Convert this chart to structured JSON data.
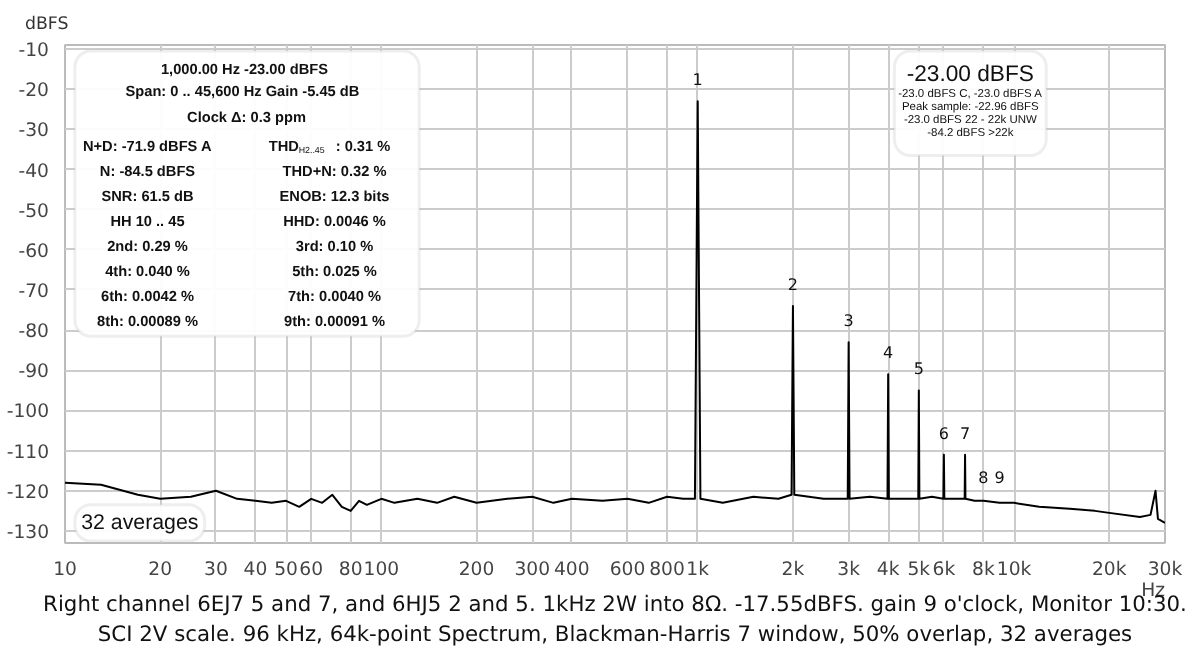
{
  "chart_data": {
    "type": "line",
    "ylabel": "dBFS",
    "log": "x",
    "grid": true,
    "marker": "none",
    "line_style": "solid",
    "xlim": [
      10,
      30000
    ],
    "ylim": [
      -133,
      -9
    ],
    "xticks": [
      10,
      20,
      30,
      40,
      50,
      60,
      80,
      100,
      200,
      300,
      400,
      600,
      800,
      {
        "value": 1000,
        "label": "1k"
      },
      {
        "value": 2000,
        "label": "2k"
      },
      {
        "value": 3000,
        "label": "3k"
      },
      {
        "value": 4000,
        "label": "4k"
      },
      {
        "value": 5000,
        "label": "5k"
      },
      {
        "value": 6000,
        "label": "6k"
      },
      {
        "value": 8000,
        "label": "8k"
      },
      {
        "value": 10000,
        "label": "10k"
      },
      {
        "value": 20000,
        "label": "20k"
      },
      {
        "value": 30000,
        "label": "30k"
      }
    ],
    "xlabel": "Hz",
    "yticks": [
      -10,
      -20,
      -30,
      -40,
      -50,
      -60,
      -70,
      -80,
      -90,
      -100,
      -110,
      -120,
      -130
    ],
    "series": [
      {
        "color": "#000000",
        "x": [
          10,
          13,
          17,
          20,
          25,
          30,
          35,
          40,
          45,
          50,
          55,
          60,
          65,
          70,
          75,
          80,
          85,
          90,
          100,
          110,
          130,
          150,
          170,
          200,
          250,
          300,
          350,
          400,
          500,
          600,
          700,
          800,
          900,
          980,
          1000,
          1020,
          1200,
          1500,
          1800,
          1980,
          2000,
          2020,
          2500,
          2980,
          3000,
          3020,
          3500,
          3980,
          4000,
          4020,
          4500,
          4980,
          5000,
          5020,
          5500,
          5980,
          6000,
          6020,
          6500,
          6980,
          7000,
          7020,
          7500,
          8000,
          9000,
          10000,
          12000,
          15000,
          18000,
          20000,
          25000,
          27000,
          28000,
          28500,
          30000
        ],
        "values": [
          -118,
          -118.5,
          -121,
          -122,
          -121.5,
          -120,
          -122,
          -122.5,
          -123,
          -122.5,
          -124,
          -122,
          -123,
          -121,
          -124,
          -125,
          -122.5,
          -123.5,
          -122,
          -123,
          -122,
          -123,
          -121.5,
          -123,
          -122,
          -121.5,
          -123,
          -122,
          -122.5,
          -122,
          -123,
          -121.5,
          -122,
          -122,
          -23,
          -122,
          -123,
          -121.5,
          -122,
          -121,
          -74,
          -121,
          -122,
          -122,
          -83,
          -122,
          -121.5,
          -122,
          -91,
          -122,
          -122,
          -122,
          -95,
          -122,
          -121.5,
          -122,
          -111,
          -122,
          -122,
          -122,
          -111,
          -122,
          -122.5,
          -122.5,
          -123,
          -123,
          -124,
          -124.5,
          -125,
          -125.5,
          -126.5,
          -126,
          -120,
          -127,
          -128
        ]
      }
    ],
    "annotations": [
      "1,000.00 Hz  -23.00 dBFS",
      "Span: 0 .. 45,600 Hz   Gain -5.45 dB",
      "Clock Δ: 0.3 ppm",
      "N+D: -71.9 dBFS A",
      "THD$_{H2..45}$: 0.31 %",
      "N: -84.5 dBFS",
      "THD+N: 0.32 %",
      "SNR: 61.5 dB",
      "ENOB: 12.3 bits",
      "HH 10 .. 45",
      "HHD: 0.0046 %",
      "2nd: 0.29 %",
      "3rd: 0.10 %",
      "4th: 0.040 %",
      "5th: 0.025 %",
      "6th: 0.0042 %",
      "7th: 0.0040 %",
      "8th: 0.00089 %",
      "9th: 0.00091 %",
      "-23.00 dBFS",
      "-23.0 dBFS C, -23.0 dBFS A",
      "Peak sample: -22.96 dBFS",
      "-23.0 dBFS 22 - 22k UNW",
      "-84.2 dBFS >22k",
      "32 averages",
      "Right channel 6EJ7 5 and 7, and 6HJ5 2 and 5. 1kHz 2W into 8Ω. -17.55dBFS. gain 9 o'clock, Monitor 10:30.",
      "SCI 2V scale. 96 kHz, 64k-point Spectrum, Blackman-Harris 7 window, 50% overlap, 32 averages",
      {
        "text": "1",
        "x": 1000,
        "y": -23
      },
      {
        "text": "2",
        "x": 2000,
        "y": -74
      },
      {
        "text": "3",
        "x": 3000,
        "y": -83
      },
      {
        "text": "4",
        "x": 4000,
        "y": -91
      },
      {
        "text": "5",
        "x": 5000,
        "y": -95
      },
      {
        "text": "6",
        "x": 6000,
        "y": -111
      },
      {
        "text": "7",
        "x": 7000,
        "y": -111
      },
      {
        "text": "8",
        "x": 8000,
        "y": -124
      },
      {
        "text": "9",
        "x": 9000,
        "y": -124
      }
    ]
  }
}
